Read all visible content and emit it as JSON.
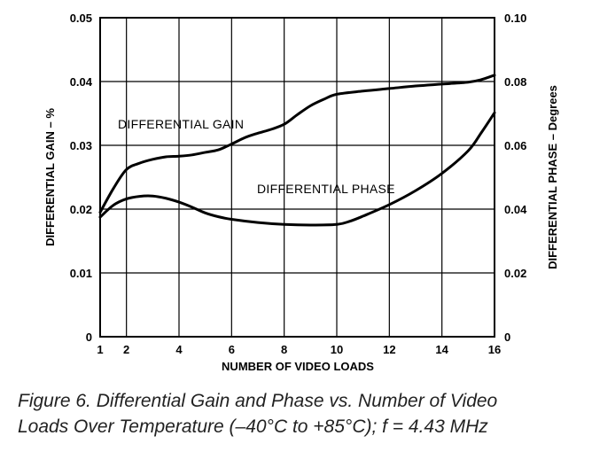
{
  "caption": {
    "line1": "Figure 6.  Differential Gain and Phase vs. Number of Video",
    "line2": "Loads Over Temperature (–40°C to +85°C); f = 4.43 MHz"
  },
  "chart_data": {
    "type": "line",
    "title": "",
    "xlabel": "NUMBER OF VIDEO LOADS",
    "ylabel_left": "DIFFERENTIAL GAIN – %",
    "ylabel_right": "DIFFERENTIAL PHASE – Degrees",
    "xlim": [
      1,
      16
    ],
    "ylim_left": [
      0,
      0.05
    ],
    "ylim_right": [
      0,
      0.1
    ],
    "grid": true,
    "x_ticks": [
      "1",
      "2",
      "4",
      "6",
      "8",
      "10",
      "12",
      "14",
      "16"
    ],
    "y_ticks_left": [
      "0",
      "0.01",
      "0.02",
      "0.03",
      "0.04",
      "0.05"
    ],
    "y_ticks_right": [
      "0",
      "0.02",
      "0.04",
      "0.06",
      "0.08",
      "0.10"
    ],
    "series": [
      {
        "name": "DIFFERENTIAL GAIN",
        "axis": "left",
        "x": [
          1,
          1.5,
          2,
          2.5,
          3,
          3.5,
          4,
          4.5,
          5,
          5.5,
          6,
          6.5,
          7,
          7.5,
          8,
          8.5,
          9,
          9.5,
          10,
          11,
          12,
          13,
          14,
          15,
          15.5,
          16
        ],
        "y": [
          0.0195,
          0.0232,
          0.0262,
          0.0272,
          0.0278,
          0.0282,
          0.0283,
          0.0285,
          0.0289,
          0.0293,
          0.0302,
          0.0312,
          0.0319,
          0.0325,
          0.0333,
          0.0348,
          0.0362,
          0.0372,
          0.038,
          0.0385,
          0.0389,
          0.0393,
          0.0396,
          0.0399,
          0.0403,
          0.041
        ]
      },
      {
        "name": "DIFFERENTIAL PHASE",
        "axis": "right",
        "x": [
          1,
          1.5,
          2,
          2.5,
          3,
          3.5,
          4,
          4.5,
          5,
          5.5,
          6,
          7,
          8,
          9,
          10,
          10.5,
          11,
          12,
          13,
          14,
          15,
          15.5,
          16
        ],
        "y": [
          0.0375,
          0.0412,
          0.0432,
          0.044,
          0.0441,
          0.0434,
          0.0422,
          0.0406,
          0.0388,
          0.0376,
          0.0368,
          0.0358,
          0.0352,
          0.035,
          0.0352,
          0.0362,
          0.0378,
          0.0414,
          0.0458,
          0.0512,
          0.0583,
          0.064,
          0.0702
        ]
      }
    ]
  }
}
